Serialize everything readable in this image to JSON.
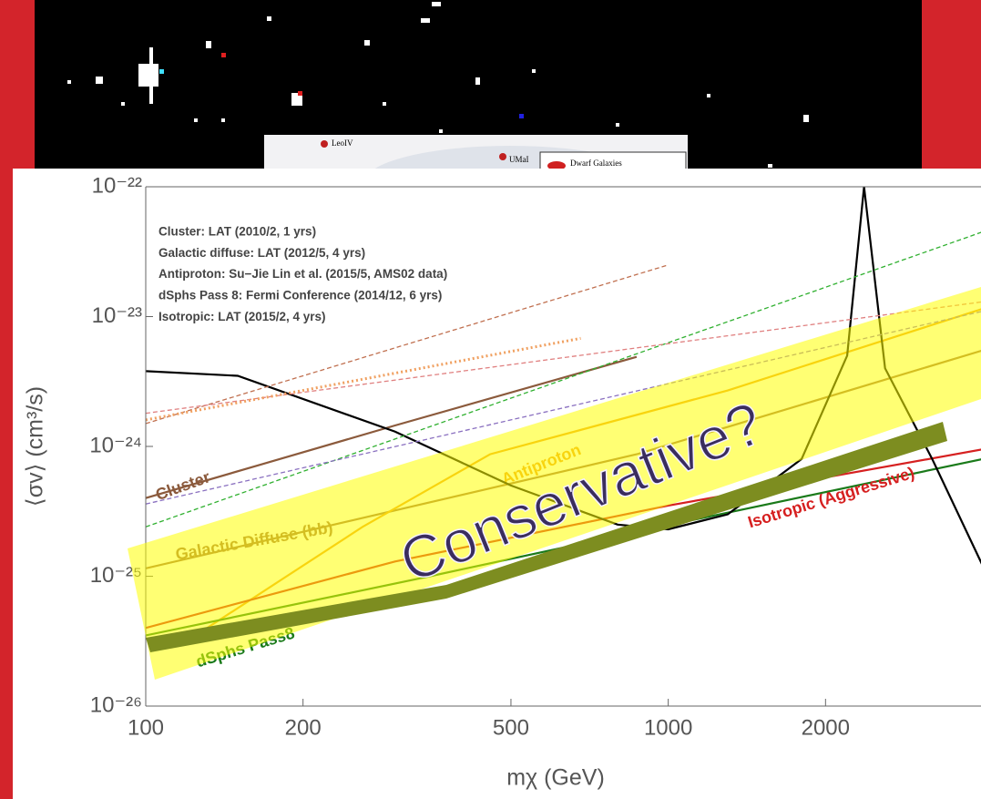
{
  "chart_data": {
    "type": "line",
    "x_label": "mχ (GeV)",
    "y_label": "⟨σv⟩ (cm³/s)",
    "log_x": true,
    "log_y": true,
    "xlim": [
      100,
      4000
    ],
    "ylim": [
      1e-26,
      1e-22
    ],
    "xticks": [
      100,
      200,
      500,
      1000,
      2000
    ],
    "yticks": [
      {
        "value": 1e-26,
        "label": "10⁻²⁶"
      },
      {
        "value": 1e-25,
        "label": "10⁻²⁵"
      },
      {
        "value": 1e-24,
        "label": "10⁻²⁴"
      },
      {
        "value": 1e-23,
        "label": "10⁻²³"
      },
      {
        "value": 1e-22,
        "label": "10⁻²²"
      }
    ],
    "annotations": [
      "Cluster: LAT (2010/2, 1 yrs)",
      "Galactic diffuse: LAT (2012/5, 4 yrs)",
      "Antiproton: Su−Jie Lin et al. (2015/5, AMS02 data)",
      "dSphs Pass 8: Fermi Conference (2014/12, 6 yrs)",
      "Isotropic: LAT (2015/2, 4 yrs)"
    ],
    "highlight_label": "Conservative?",
    "series": [
      {
        "name": "Cluster",
        "color": "#8b5a3c",
        "style": "solid",
        "x": [
          100,
          300,
          870
        ],
        "values": [
          4e-25,
          1.45e-24,
          4.9e-24
        ]
      },
      {
        "name": "Galactic Diffuse (bb)",
        "color": "#a0704a",
        "style": "solid",
        "x": [
          100,
          870,
          4000
        ],
        "values": [
          1.15e-25,
          8.7e-25,
          5.5e-24
        ]
      },
      {
        "name": "Antiproton",
        "color": "#f0a020",
        "style": "solid",
        "x": [
          116,
          260,
          456,
          1300,
          4000
        ],
        "values": [
          2.9e-26,
          2.4e-25,
          8.7e-25,
          2.7e-24,
          1.15e-23
        ]
      },
      {
        "name": "dSphs Pass8",
        "color": "#1a7a1a",
        "style": "solid",
        "x": [
          100,
          350,
          870,
          4000
        ],
        "values": [
          3.5e-26,
          1e-25,
          2.2e-25,
          8e-25
        ]
      },
      {
        "name": "Isotropic (Aggressive)",
        "color": "#d62020",
        "style": "solid",
        "x": [
          100,
          300,
          1000,
          4000
        ],
        "values": [
          4e-26,
          1.3e-25,
          3.5e-25,
          9.5e-25
        ]
      },
      {
        "color": "#000000",
        "style": "solid",
        "x": [
          100,
          150,
          300,
          500,
          800,
          1000,
          1300,
          1800,
          2200,
          2370,
          2600,
          3200,
          4000
        ],
        "values": [
          3.8e-24,
          3.5e-24,
          1.3e-24,
          5e-25,
          2.5e-25,
          2.3e-25,
          3e-25,
          8e-25,
          5e-24,
          1e-22,
          4e-24,
          8e-25,
          1.2e-25
        ]
      },
      {
        "color": "#30b030",
        "style": "dashed",
        "x": [
          100,
          4000
        ],
        "values": [
          2.4e-25,
          4.5e-23
        ]
      },
      {
        "color": "#8a70c0",
        "style": "dashed",
        "x": [
          100,
          4000
        ],
        "values": [
          3.6e-25,
          1.1e-23
        ]
      },
      {
        "color": "#c07050",
        "style": "dashed",
        "x": [
          100,
          1000
        ],
        "values": [
          1.5e-24,
          2.5e-23
        ]
      },
      {
        "color": "#e08080",
        "style": "dashed",
        "x": [
          100,
          4000
        ],
        "values": [
          1.8e-24,
          1.3e-23
        ]
      },
      {
        "color": "#f0a060",
        "style": "dotted",
        "x": [
          100,
          680
        ],
        "values": [
          1.6e-24,
          6.8e-24
        ]
      }
    ]
  },
  "inset_labels": [
    "LeoIV",
    "UMaI",
    "Dwarf Galaxies"
  ]
}
